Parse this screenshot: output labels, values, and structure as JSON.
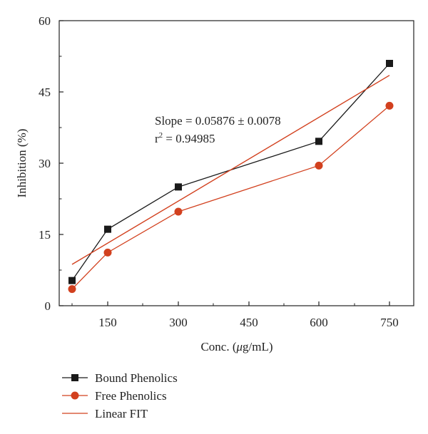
{
  "chart_data": {
    "type": "line",
    "xlabel_prefix": "Conc. (",
    "xlabel_mu": "μ",
    "xlabel_suffix": "g/mL)",
    "ylabel": "Inhibition (%)",
    "x_ticks": [
      "150",
      "300",
      "450",
      "600",
      "750"
    ],
    "y_ticks": [
      "0",
      "15",
      "30",
      "45",
      "60"
    ],
    "ylim": [
      0,
      60
    ],
    "x_categories": [
      "75",
      "150",
      "300",
      "600",
      "750"
    ],
    "series": [
      {
        "name": "Bound Phenolics",
        "color": "#1a1a1a",
        "marker": "square",
        "values": [
          5.3,
          16.1,
          25.0,
          34.6,
          51.0
        ]
      },
      {
        "name": "Free Phenolics",
        "color": "#d2401e",
        "marker": "circle",
        "values": [
          3.5,
          11.2,
          19.8,
          29.5,
          42.1
        ]
      },
      {
        "name": "Linear FIT",
        "color": "#d2401e",
        "marker": "none",
        "fit_start": 8.7,
        "fit_end": 48.5
      }
    ],
    "annotation": {
      "slope_text": "Slope = 0.05876 ± 0.0078",
      "r2_prefix": "r",
      "r2_sup": "2",
      "r2_value": " = 0.94985"
    },
    "legend_position": "bottom-left",
    "grid": false
  }
}
